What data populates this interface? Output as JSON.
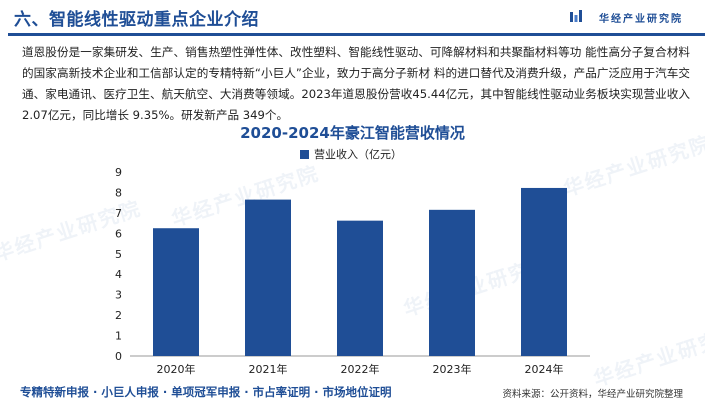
{
  "header": {
    "title": "六、智能线性驱动重点企业介绍",
    "brand": "华经产业研究院"
  },
  "paragraph": "道恩股份是一家集研发、生产、销售热塑性弹性体、改性塑料、智能线性驱动、可降解材料和共聚酯材料等功 能性高分子复合材料的国家高新技术企业和工信部认定的专精特新“小巨人”企业，致力于高分子新材 料的进口替代及消费升级，产品广泛应用于汽车交通、家电通讯、医疗卫生、航天航空、大消费等领域。2023年道恩股份营收45.44亿元，其中智能线性驱动业务板块实现营业收入2.07亿元，同比增长 9.35%。研发新产品 349个。",
  "watermark": "华经产业研究院",
  "chart_data": {
    "type": "bar",
    "title": "2020-2024年豪江智能营收情况",
    "categories": [
      "2020年",
      "2021年",
      "2022年",
      "2023年",
      "2024年"
    ],
    "series": [
      {
        "name": "营业收入（亿元）",
        "values": [
          6.25,
          7.65,
          6.62,
          7.15,
          8.22
        ]
      }
    ],
    "ylim": [
      0,
      9
    ],
    "yticks": [
      "0",
      "1",
      "2",
      "3",
      "4",
      "5",
      "6",
      "7",
      "8",
      "9"
    ],
    "legend_position": "top-center",
    "grid": false,
    "colors": {
      "bar": "#1f4e96",
      "title": "#1f4e96"
    }
  },
  "footer": {
    "left": "专精特新申报 · 小巨人申报 · 单项冠军申报 · 市占率证明 · 市场地位证明",
    "right": "资料来源：公开资料，华经产业研究院整理"
  }
}
